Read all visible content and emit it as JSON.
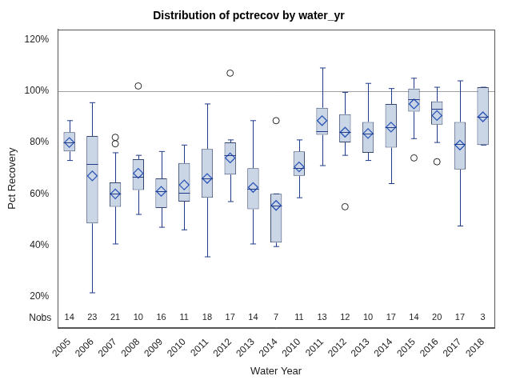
{
  "chart_data": {
    "type": "boxplot",
    "title": "Distribution of pctrecov by water_yr",
    "x_label": "Water Year",
    "y_label": "Pct Recovery",
    "categories": [
      "2005",
      "2006",
      "2007",
      "2008",
      "2009",
      "2010",
      "2011",
      "2012",
      "2013",
      "2014",
      "2010",
      "2011",
      "2012",
      "2013",
      "2014",
      "2015",
      "2016",
      "2017",
      "2018"
    ],
    "min": [
      73,
      21.5,
      40.5,
      52,
      47,
      46,
      35.5,
      57,
      40.5,
      39.5,
      58.5,
      71,
      75,
      73,
      64,
      81.5,
      80,
      47.5,
      79
    ],
    "q1": [
      76.5,
      48.5,
      55,
      61.5,
      54.5,
      57,
      58.5,
      67.5,
      54,
      41,
      67,
      83,
      80,
      76,
      78,
      92,
      87,
      69.5,
      79
    ],
    "median": [
      80,
      71.5,
      60,
      66.5,
      61,
      60.5,
      66,
      75,
      62,
      55.5,
      70,
      84.5,
      84,
      83.5,
      86,
      97,
      93,
      79.5,
      90
    ],
    "q3": [
      84,
      82.5,
      64.5,
      73.5,
      66,
      72,
      77.5,
      80,
      70,
      60,
      76.5,
      93.5,
      91,
      88,
      95,
      101,
      96,
      88,
      101.5
    ],
    "max": [
      88.5,
      95.5,
      76,
      75,
      76.5,
      79,
      95,
      81,
      88.5,
      60,
      81,
      109,
      99.5,
      103,
      101,
      105,
      101.5,
      104,
      101.5
    ],
    "mean": [
      80,
      67,
      60,
      68,
      61,
      63.5,
      66,
      74,
      62.5,
      55.5,
      70.5,
      88.5,
      84,
      83.5,
      86,
      95,
      90.5,
      79,
      90
    ],
    "outliers": [
      [],
      [],
      [
        79.5,
        82
      ],
      [
        102
      ],
      [],
      [],
      [],
      [
        107
      ],
      [],
      [
        88.5
      ],
      [],
      [],
      [
        55
      ],
      [],
      [],
      [
        74
      ],
      [
        72.5
      ],
      [],
      []
    ],
    "nobs_label": "Nobs",
    "nobs": [
      14,
      23,
      21,
      10,
      16,
      11,
      18,
      17,
      14,
      7,
      11,
      13,
      12,
      10,
      17,
      14,
      20,
      17,
      3
    ],
    "ylim": [
      8,
      124
    ],
    "yticks": [
      {
        "value": 20,
        "label": "20%"
      },
      {
        "value": 40,
        "label": "40%"
      },
      {
        "value": 60,
        "label": "60%"
      },
      {
        "value": 80,
        "label": "80%"
      },
      {
        "value": 100,
        "label": "100%"
      },
      {
        "value": 120,
        "label": "120%"
      }
    ],
    "reference_line": 100,
    "color": "#cad5e5",
    "grid": false
  }
}
